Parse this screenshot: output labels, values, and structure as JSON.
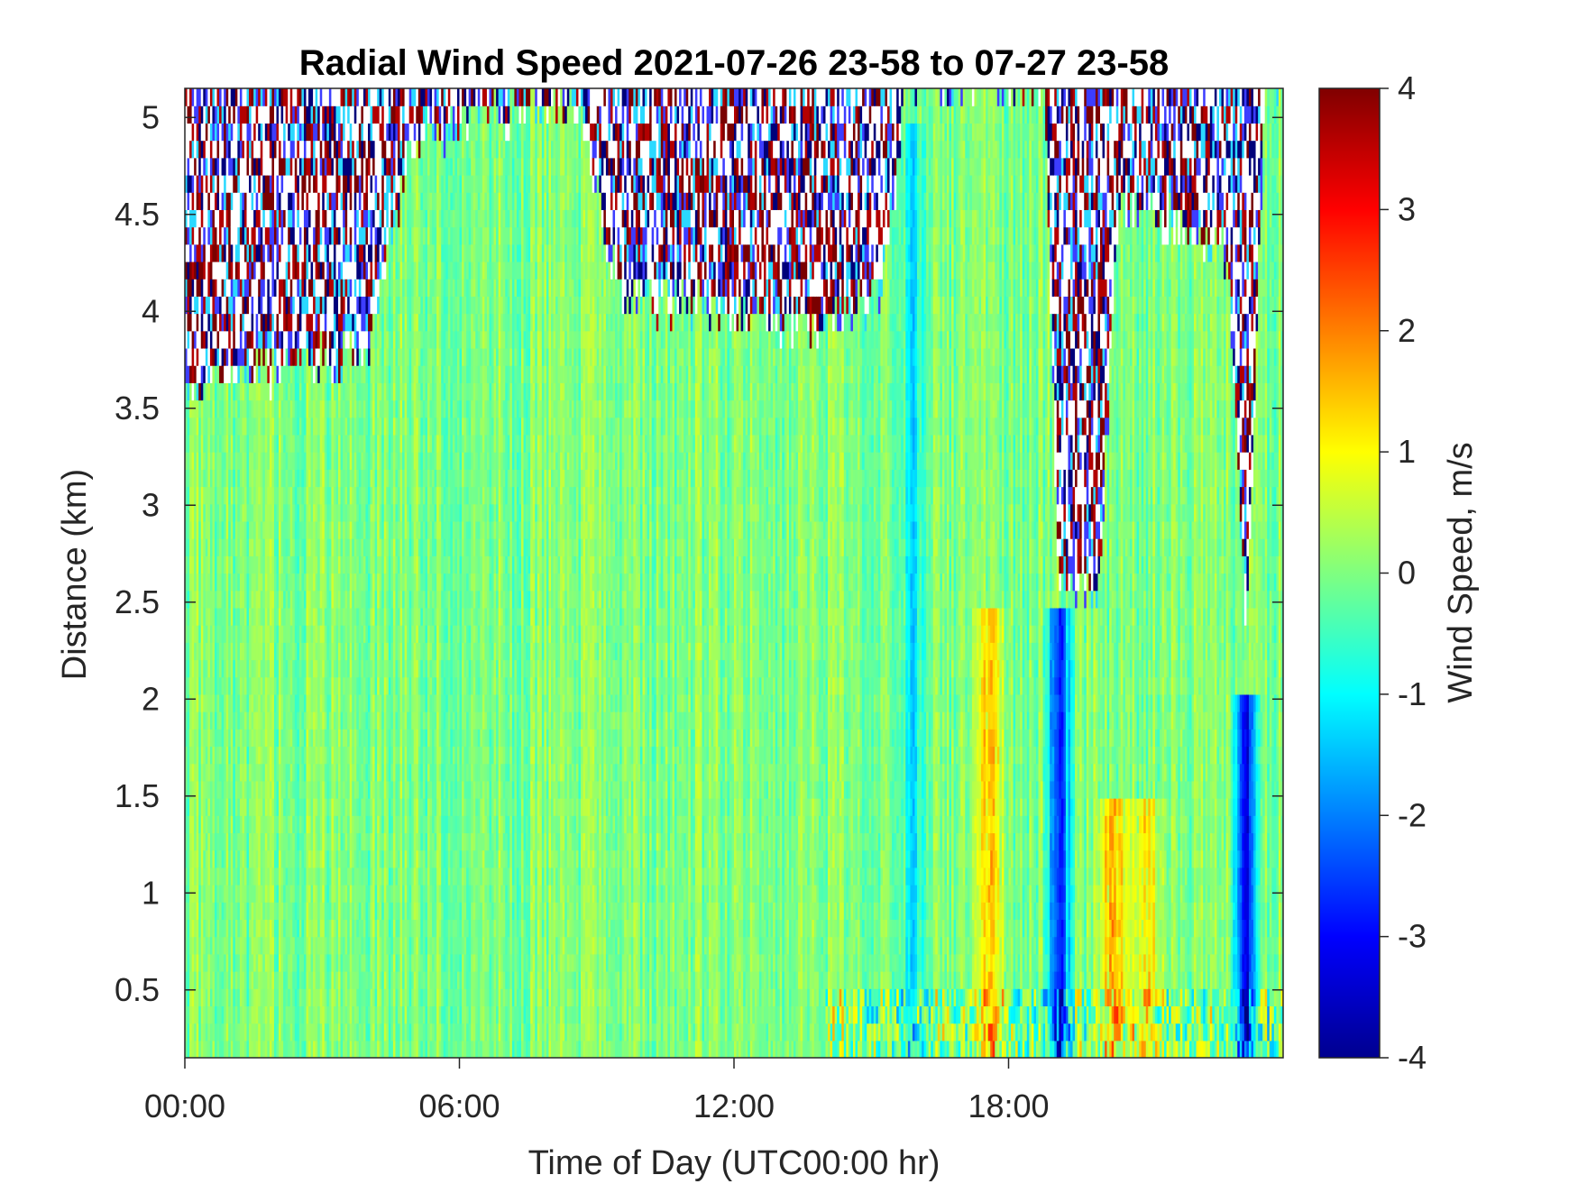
{
  "chart_data": {
    "type": "heatmap",
    "title": "Radial Wind Speed 2021-07-26 23-58 to 07-27 23-58",
    "xlabel": "Time of Day (UTC00:00 hr)",
    "ylabel": "Distance (km)",
    "xlim_hours": [
      0,
      24
    ],
    "ylim_km": [
      0.15,
      5.15
    ],
    "x_ticks": [
      {
        "hour": 0,
        "label": "00:00"
      },
      {
        "hour": 6,
        "label": "06:00"
      },
      {
        "hour": 12,
        "label": "12:00"
      },
      {
        "hour": 18,
        "label": "18:00"
      }
    ],
    "y_ticks": [
      {
        "value": 0.5,
        "label": "0.5"
      },
      {
        "value": 1,
        "label": "1"
      },
      {
        "value": 1.5,
        "label": "1.5"
      },
      {
        "value": 2,
        "label": "2"
      },
      {
        "value": 2.5,
        "label": "2.5"
      },
      {
        "value": 3,
        "label": "3"
      },
      {
        "value": 3.5,
        "label": "3.5"
      },
      {
        "value": 4,
        "label": "4"
      },
      {
        "value": 4.5,
        "label": "4.5"
      },
      {
        "value": 5,
        "label": "5"
      }
    ],
    "colorbar": {
      "label": "Wind Speed, m/s",
      "range": [
        -4,
        4
      ],
      "ticks": [
        "4",
        "3",
        "2",
        "1",
        "0",
        "-1",
        "-2",
        "-3",
        "-4"
      ],
      "colormap": "jet"
    },
    "features": {
      "background_speed_ms": 0,
      "valid_data_top_km": [
        {
          "hour": 0,
          "km": 3.6
        },
        {
          "hour": 4,
          "km": 3.8
        },
        {
          "hour": 5,
          "km": 4.9
        },
        {
          "hour": 8.5,
          "km": 5.1
        },
        {
          "hour": 9.5,
          "km": 4.1
        },
        {
          "hour": 13.5,
          "km": 3.9
        },
        {
          "hour": 15.2,
          "km": 4.1
        },
        {
          "hour": 15.8,
          "km": 5.15
        },
        {
          "hour": 18.8,
          "km": 5.15
        },
        {
          "hour": 19.1,
          "km": 2.5
        },
        {
          "hour": 20.0,
          "km": 2.6
        },
        {
          "hour": 20.4,
          "km": 4.6
        },
        {
          "hour": 22.8,
          "km": 4.3
        },
        {
          "hour": 23.2,
          "km": 2.3
        },
        {
          "hour": 23.6,
          "km": 5.15
        },
        {
          "hour": 24,
          "km": 5.15
        }
      ],
      "negative_bands": [
        {
          "hour": 15.9,
          "speed_ms": -1.2,
          "top_km": 5.0
        },
        {
          "hour": 19.1,
          "speed_ms": -3.0,
          "top_km": 2.5
        },
        {
          "hour": 23.2,
          "speed_ms": -3.5,
          "top_km": 2.0
        }
      ],
      "positive_bands": [
        {
          "hour": 17.6,
          "speed_ms": 1.8,
          "top_km": 2.5
        },
        {
          "hour": 20.3,
          "speed_ms": 2.2,
          "top_km": 1.5
        },
        {
          "hour": 21.0,
          "speed_ms": 1.6,
          "top_km": 1.5
        }
      ]
    }
  }
}
